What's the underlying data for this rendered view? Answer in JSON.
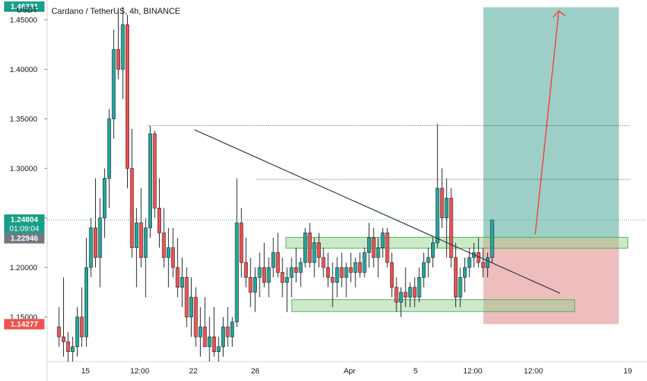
{
  "header": {
    "title": "Cardano / TetherUS, 4h, BINANCE",
    "unit": "USDT"
  },
  "colors": {
    "up": "#26a69a",
    "down": "#ef5350",
    "candle_border": "#131722",
    "profit_zone": "#7dbfb4",
    "loss_zone": "#e8a7a8",
    "zone_box": "#8fd18a",
    "trendline": "#2a2e39",
    "arrow": "#f2463d",
    "price_line": "#26a69a",
    "badge_top": "#1b9e89",
    "badge_current": "#1b9e89",
    "badge_gray": "#757880",
    "badge_bottom": "#ef5350"
  },
  "chart_data": {
    "type": "candlestick",
    "ylim": [
      1.105,
      1.47
    ],
    "y_ticks": [
      1.15,
      1.2,
      1.25,
      1.3,
      1.35,
      1.4,
      1.45
    ],
    "y_tick_labels": [
      "1.15000",
      "1.20000",
      "1.25000",
      "1.30000",
      "1.35000",
      "1.40000",
      "1.45000"
    ],
    "x_tick_labels": [
      "15",
      "12:00",
      "22",
      "26",
      "Apr",
      "5",
      "12:00",
      "12:00",
      "19"
    ],
    "price_badges": [
      {
        "label": "1.46331",
        "value": 1.46331,
        "color": "badge_top"
      },
      {
        "label": "1.24804",
        "sublabel": "01:09:04",
        "value": 1.24804,
        "color": "badge_current"
      },
      {
        "label": "1.22946",
        "value": 1.22946,
        "color": "badge_gray"
      },
      {
        "label": "1.14277",
        "value": 1.14277,
        "color": "badge_bottom"
      }
    ],
    "current_price": 1.24804,
    "horizontal_levels": [
      1.3432,
      1.2889
    ],
    "trade_position": {
      "entry": 1.2295,
      "target": 1.4627,
      "stop": 1.1428,
      "x_start_index": 0.74,
      "x_end_index": 0.97
    },
    "support_zones": [
      {
        "low": 1.2195,
        "high": 1.2305,
        "x_start": 0.405,
        "x_end": 0.985
      },
      {
        "low": 1.1555,
        "high": 1.1675,
        "x_start": 0.415,
        "x_end": 0.895
      }
    ],
    "trendline": {
      "from": [
        0.25,
        1.339
      ],
      "to": [
        0.87,
        1.174
      ]
    },
    "forecast_arrow": {
      "from": [
        0.828,
        1.2335
      ],
      "to": [
        0.868,
        1.459
      ]
    },
    "candles": [
      [
        1.14,
        1.16,
        1.12,
        1.13
      ],
      [
        1.13,
        1.19,
        1.11,
        1.125
      ],
      [
        1.125,
        1.135,
        1.105,
        1.115
      ],
      [
        1.115,
        1.13,
        1.105,
        1.12
      ],
      [
        1.12,
        1.16,
        1.11,
        1.15
      ],
      [
        1.15,
        1.18,
        1.12,
        1.13
      ],
      [
        1.13,
        1.23,
        1.12,
        1.2
      ],
      [
        1.2,
        1.25,
        1.19,
        1.24
      ],
      [
        1.24,
        1.29,
        1.2,
        1.21
      ],
      [
        1.21,
        1.27,
        1.18,
        1.25
      ],
      [
        1.25,
        1.3,
        1.23,
        1.29
      ],
      [
        1.29,
        1.36,
        1.26,
        1.35
      ],
      [
        1.35,
        1.44,
        1.33,
        1.42
      ],
      [
        1.42,
        1.46,
        1.39,
        1.4
      ],
      [
        1.4,
        1.463,
        1.37,
        1.445
      ],
      [
        1.445,
        1.455,
        1.28,
        1.3
      ],
      [
        1.3,
        1.34,
        1.21,
        1.22
      ],
      [
        1.22,
        1.26,
        1.18,
        1.245
      ],
      [
        1.245,
        1.28,
        1.2,
        1.21
      ],
      [
        1.21,
        1.25,
        1.17,
        1.24
      ],
      [
        1.24,
        1.343,
        1.23,
        1.335
      ],
      [
        1.335,
        1.338,
        1.25,
        1.26
      ],
      [
        1.26,
        1.29,
        1.22,
        1.235
      ],
      [
        1.235,
        1.26,
        1.2,
        1.21
      ],
      [
        1.21,
        1.24,
        1.18,
        1.22
      ],
      [
        1.22,
        1.24,
        1.19,
        1.2
      ],
      [
        1.2,
        1.23,
        1.17,
        1.18
      ],
      [
        1.18,
        1.21,
        1.16,
        1.19
      ],
      [
        1.19,
        1.2,
        1.14,
        1.15
      ],
      [
        1.15,
        1.19,
        1.13,
        1.17
      ],
      [
        1.17,
        1.18,
        1.12,
        1.13
      ],
      [
        1.13,
        1.16,
        1.11,
        1.14
      ],
      [
        1.14,
        1.17,
        1.12,
        1.12
      ],
      [
        1.12,
        1.15,
        1.105,
        1.13
      ],
      [
        1.13,
        1.16,
        1.11,
        1.115
      ],
      [
        1.115,
        1.13,
        1.105,
        1.12
      ],
      [
        1.12,
        1.15,
        1.11,
        1.14
      ],
      [
        1.14,
        1.16,
        1.12,
        1.13
      ],
      [
        1.13,
        1.15,
        1.12,
        1.145
      ],
      [
        1.145,
        1.29,
        1.14,
        1.245
      ],
      [
        1.245,
        1.26,
        1.19,
        1.205
      ],
      [
        1.205,
        1.23,
        1.18,
        1.19
      ],
      [
        1.19,
        1.21,
        1.16,
        1.175
      ],
      [
        1.175,
        1.2,
        1.155,
        1.19
      ],
      [
        1.19,
        1.215,
        1.17,
        1.2
      ],
      [
        1.2,
        1.225,
        1.18,
        1.185
      ],
      [
        1.185,
        1.21,
        1.17,
        1.2
      ],
      [
        1.2,
        1.23,
        1.19,
        1.215
      ],
      [
        1.215,
        1.235,
        1.19,
        1.195
      ],
      [
        1.195,
        1.21,
        1.17,
        1.185
      ],
      [
        1.185,
        1.2,
        1.155,
        1.19
      ],
      [
        1.19,
        1.21,
        1.17,
        1.2
      ],
      [
        1.2,
        1.22,
        1.185,
        1.195
      ],
      [
        1.195,
        1.21,
        1.18,
        1.205
      ],
      [
        1.205,
        1.24,
        1.2,
        1.235
      ],
      [
        1.235,
        1.245,
        1.2,
        1.205
      ],
      [
        1.205,
        1.23,
        1.19,
        1.225
      ],
      [
        1.225,
        1.235,
        1.2,
        1.21
      ],
      [
        1.21,
        1.22,
        1.19,
        1.2
      ],
      [
        1.2,
        1.215,
        1.18,
        1.19
      ],
      [
        1.19,
        1.205,
        1.16,
        1.185
      ],
      [
        1.185,
        1.21,
        1.17,
        1.2
      ],
      [
        1.2,
        1.215,
        1.18,
        1.19
      ],
      [
        1.19,
        1.205,
        1.17,
        1.2
      ],
      [
        1.2,
        1.215,
        1.185,
        1.195
      ],
      [
        1.195,
        1.21,
        1.18,
        1.205
      ],
      [
        1.205,
        1.215,
        1.19,
        1.195
      ],
      [
        1.195,
        1.22,
        1.19,
        1.215
      ],
      [
        1.215,
        1.245,
        1.2,
        1.23
      ],
      [
        1.23,
        1.24,
        1.2,
        1.21
      ],
      [
        1.21,
        1.23,
        1.19,
        1.22
      ],
      [
        1.22,
        1.24,
        1.21,
        1.235
      ],
      [
        1.235,
        1.24,
        1.2,
        1.205
      ],
      [
        1.205,
        1.215,
        1.17,
        1.18
      ],
      [
        1.18,
        1.19,
        1.155,
        1.165
      ],
      [
        1.165,
        1.18,
        1.15,
        1.175
      ],
      [
        1.175,
        1.2,
        1.16,
        1.17
      ],
      [
        1.17,
        1.185,
        1.16,
        1.18
      ],
      [
        1.18,
        1.19,
        1.16,
        1.17
      ],
      [
        1.17,
        1.2,
        1.165,
        1.19
      ],
      [
        1.19,
        1.215,
        1.18,
        1.205
      ],
      [
        1.205,
        1.22,
        1.19,
        1.21
      ],
      [
        1.21,
        1.23,
        1.2,
        1.225
      ],
      [
        1.225,
        1.345,
        1.22,
        1.28
      ],
      [
        1.28,
        1.3,
        1.24,
        1.25
      ],
      [
        1.25,
        1.29,
        1.21,
        1.27
      ],
      [
        1.27,
        1.28,
        1.2,
        1.21
      ],
      [
        1.21,
        1.225,
        1.16,
        1.17
      ],
      [
        1.17,
        1.2,
        1.16,
        1.19
      ],
      [
        1.19,
        1.21,
        1.175,
        1.2
      ],
      [
        1.2,
        1.22,
        1.19,
        1.21
      ],
      [
        1.21,
        1.225,
        1.2,
        1.215
      ],
      [
        1.215,
        1.23,
        1.2,
        1.205
      ],
      [
        1.205,
        1.22,
        1.19,
        1.2
      ],
      [
        1.2,
        1.215,
        1.19,
        1.21
      ],
      [
        1.21,
        1.248,
        1.205,
        1.248
      ]
    ]
  }
}
